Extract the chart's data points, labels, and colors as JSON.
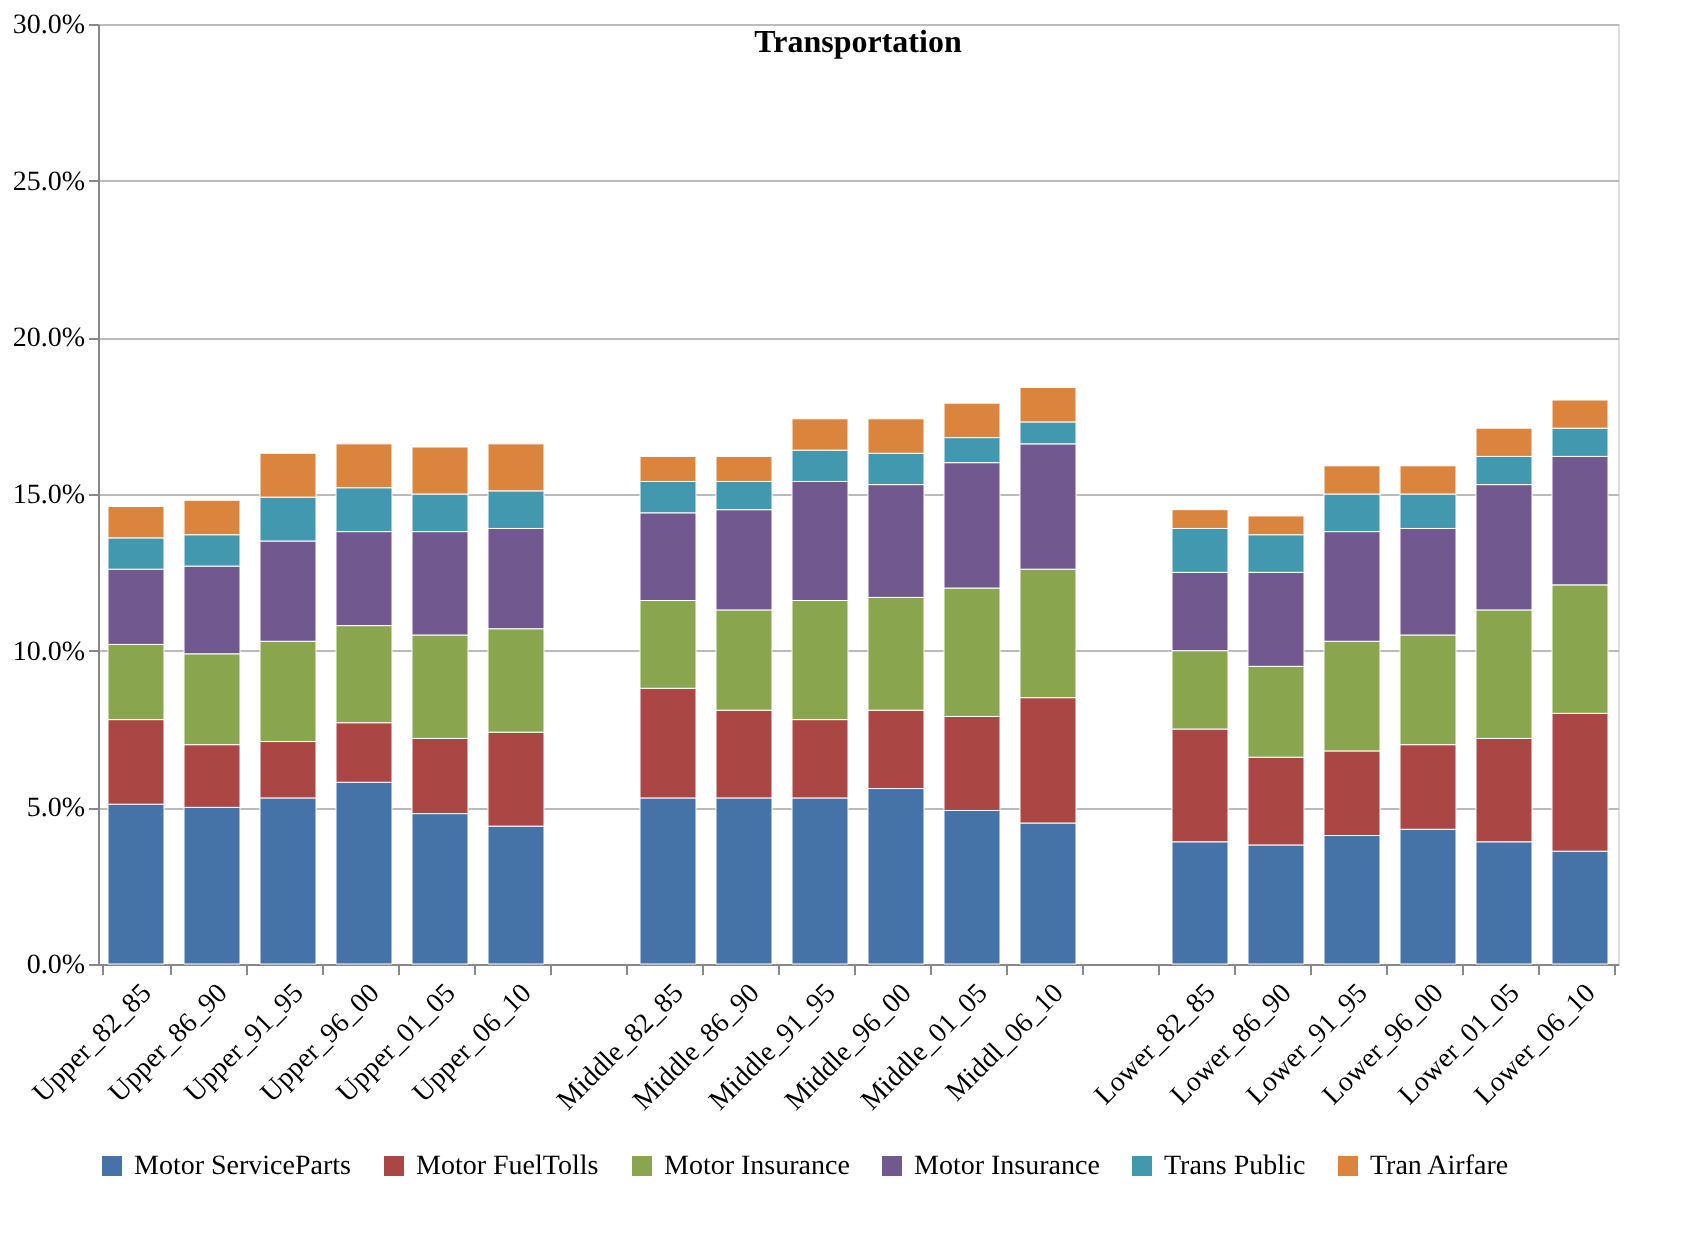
{
  "chart_data": {
    "type": "bar",
    "title": "Transportation",
    "stacked": true,
    "categories": [
      "Upper_82_85",
      "Upper_86_90",
      "Upper_91_95",
      "Upper_96_00",
      "Upper_01_05",
      "Upper_06_10",
      null,
      "Middle_82_85",
      "Middle_86_90",
      "Middle_91_95",
      "Middle_96_00",
      "Middle_01_05",
      "Middl_06_10",
      null,
      "Lower_82_85",
      "Lower_86_90",
      "Lower_91_95",
      "Lower_96_00",
      "Lower_01_05",
      "Lower_06_10"
    ],
    "series": [
      {
        "name": "Motor ServiceParts",
        "color": "#4572a7",
        "values": [
          5.1,
          5.0,
          5.3,
          5.8,
          4.8,
          4.4,
          null,
          5.3,
          5.3,
          5.3,
          5.6,
          4.9,
          4.5,
          null,
          3.9,
          3.8,
          4.1,
          4.3,
          3.9,
          3.6
        ]
      },
      {
        "name": "Motor FuelTolls",
        "color": "#aa4643",
        "values": [
          2.7,
          2.0,
          1.8,
          1.9,
          2.4,
          3.0,
          null,
          3.5,
          2.8,
          2.5,
          2.5,
          3.0,
          4.0,
          null,
          3.6,
          2.8,
          2.7,
          2.7,
          3.3,
          4.4
        ]
      },
      {
        "name": "Motor Insurance",
        "color": "#89a54e",
        "values": [
          2.4,
          2.9,
          3.2,
          3.1,
          3.3,
          3.3,
          null,
          2.8,
          3.2,
          3.8,
          3.6,
          4.1,
          4.1,
          null,
          2.5,
          2.9,
          3.5,
          3.5,
          4.1,
          4.1
        ]
      },
      {
        "name": "Motor Insurance",
        "color": "#71588f",
        "values": [
          2.4,
          2.8,
          3.2,
          3.0,
          3.3,
          3.2,
          null,
          2.8,
          3.2,
          3.8,
          3.6,
          4.0,
          4.0,
          null,
          2.5,
          3.0,
          3.5,
          3.4,
          4.0,
          4.1
        ]
      },
      {
        "name": "Trans Public",
        "color": "#4198af",
        "values": [
          1.0,
          1.0,
          1.4,
          1.4,
          1.2,
          1.2,
          null,
          1.0,
          0.9,
          1.0,
          1.0,
          0.8,
          0.7,
          null,
          1.4,
          1.2,
          1.2,
          1.1,
          0.9,
          0.9
        ]
      },
      {
        "name": "Tran Airfare",
        "color": "#db843d",
        "values": [
          1.0,
          1.1,
          1.4,
          1.4,
          1.5,
          1.5,
          null,
          0.8,
          0.8,
          1.0,
          1.1,
          1.1,
          1.1,
          null,
          0.6,
          0.6,
          0.9,
          0.9,
          0.9,
          0.9
        ]
      }
    ],
    "ylim": [
      0,
      30
    ],
    "yticks": [
      {
        "value": 0,
        "label": "0.0%"
      },
      {
        "value": 5,
        "label": "5.0%"
      },
      {
        "value": 10,
        "label": "10.0%"
      },
      {
        "value": 15,
        "label": "15.0%"
      },
      {
        "value": 20,
        "label": "20.0%"
      },
      {
        "value": 25,
        "label": "25.0%"
      },
      {
        "value": 30,
        "label": "30.0%"
      }
    ],
    "grid": "y",
    "legend": "bottom"
  }
}
